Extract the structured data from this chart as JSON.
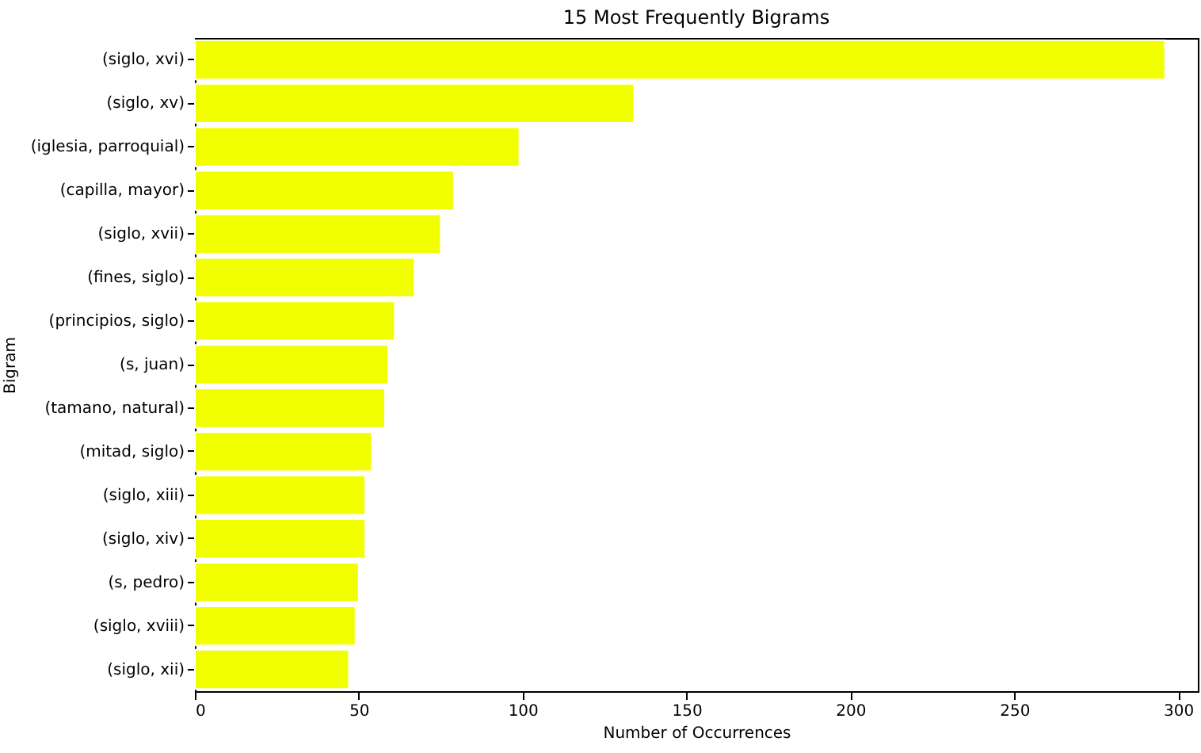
{
  "chart_data": {
    "type": "bar",
    "orientation": "horizontal",
    "title": "15 Most Frequently Bigrams",
    "xlabel": "Number of Occurrences",
    "ylabel": "Bigram",
    "categories": [
      "(siglo, xvi)",
      "(siglo, xv)",
      "(iglesia, parroquial)",
      "(capilla, mayor)",
      "(siglo, xvii)",
      "(fines, siglo)",
      "(principios, siglo)",
      "(s, juan)",
      "(tamano, natural)",
      "(mitad, siglo)",
      "(siglo, xiii)",
      "(siglo, xiv)",
      "(s, pedro)",
      "(siglo, xviii)",
      "(siglo, xii)"
    ],
    "values": [
      296,
      134,
      99,
      79,
      75,
      67,
      61,
      59,
      58,
      54,
      52,
      52,
      50,
      49,
      47
    ],
    "color": "#f2ff00",
    "xlim": [
      0,
      306
    ],
    "xticks": [
      0,
      50,
      100,
      150,
      200,
      250,
      300
    ],
    "grid": false
  }
}
